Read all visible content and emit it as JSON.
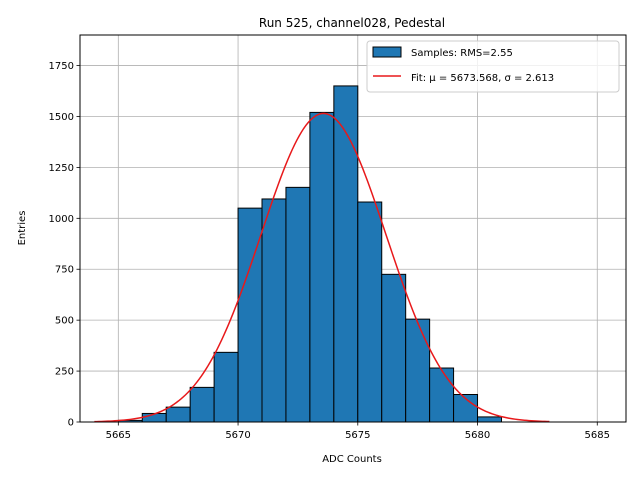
{
  "chart_data": {
    "type": "bar",
    "title": "Run 525, channel028, Pedestal",
    "xlabel": "ADC Counts",
    "ylabel": "Entries",
    "xlim": [
      5663.4,
      5686.2
    ],
    "ylim": [
      0,
      1900
    ],
    "grid": true,
    "legend_position": "top-right",
    "xticks": [
      5665,
      5670,
      5675,
      5680,
      5685
    ],
    "yticks": [
      0,
      250,
      500,
      750,
      1000,
      1250,
      1500,
      1750
    ],
    "ytick_labels": [
      "0",
      "250",
      "500",
      "750",
      "1000",
      "1250",
      "1500",
      "1750"
    ],
    "histogram": {
      "name": "Samples: RMS=2.55",
      "color": "#1f77b4",
      "edge_color": "#000000",
      "bin_edges": [
        5665,
        5666,
        5667,
        5668,
        5669,
        5670,
        5671,
        5672,
        5673,
        5674,
        5675,
        5676,
        5677,
        5678,
        5679,
        5680,
        5681
      ],
      "values": [
        8,
        42,
        73,
        170,
        342,
        1050,
        1095,
        1152,
        1520,
        1650,
        1080,
        725,
        505,
        265,
        135,
        25
      ]
    },
    "fit": {
      "name": "Fit: μ = 5673.568, σ = 2.613",
      "color": "#e8191b",
      "mu": 5673.568,
      "sigma": 2.613,
      "amplitude": 1515,
      "x_range": [
        5664,
        5683
      ]
    }
  }
}
